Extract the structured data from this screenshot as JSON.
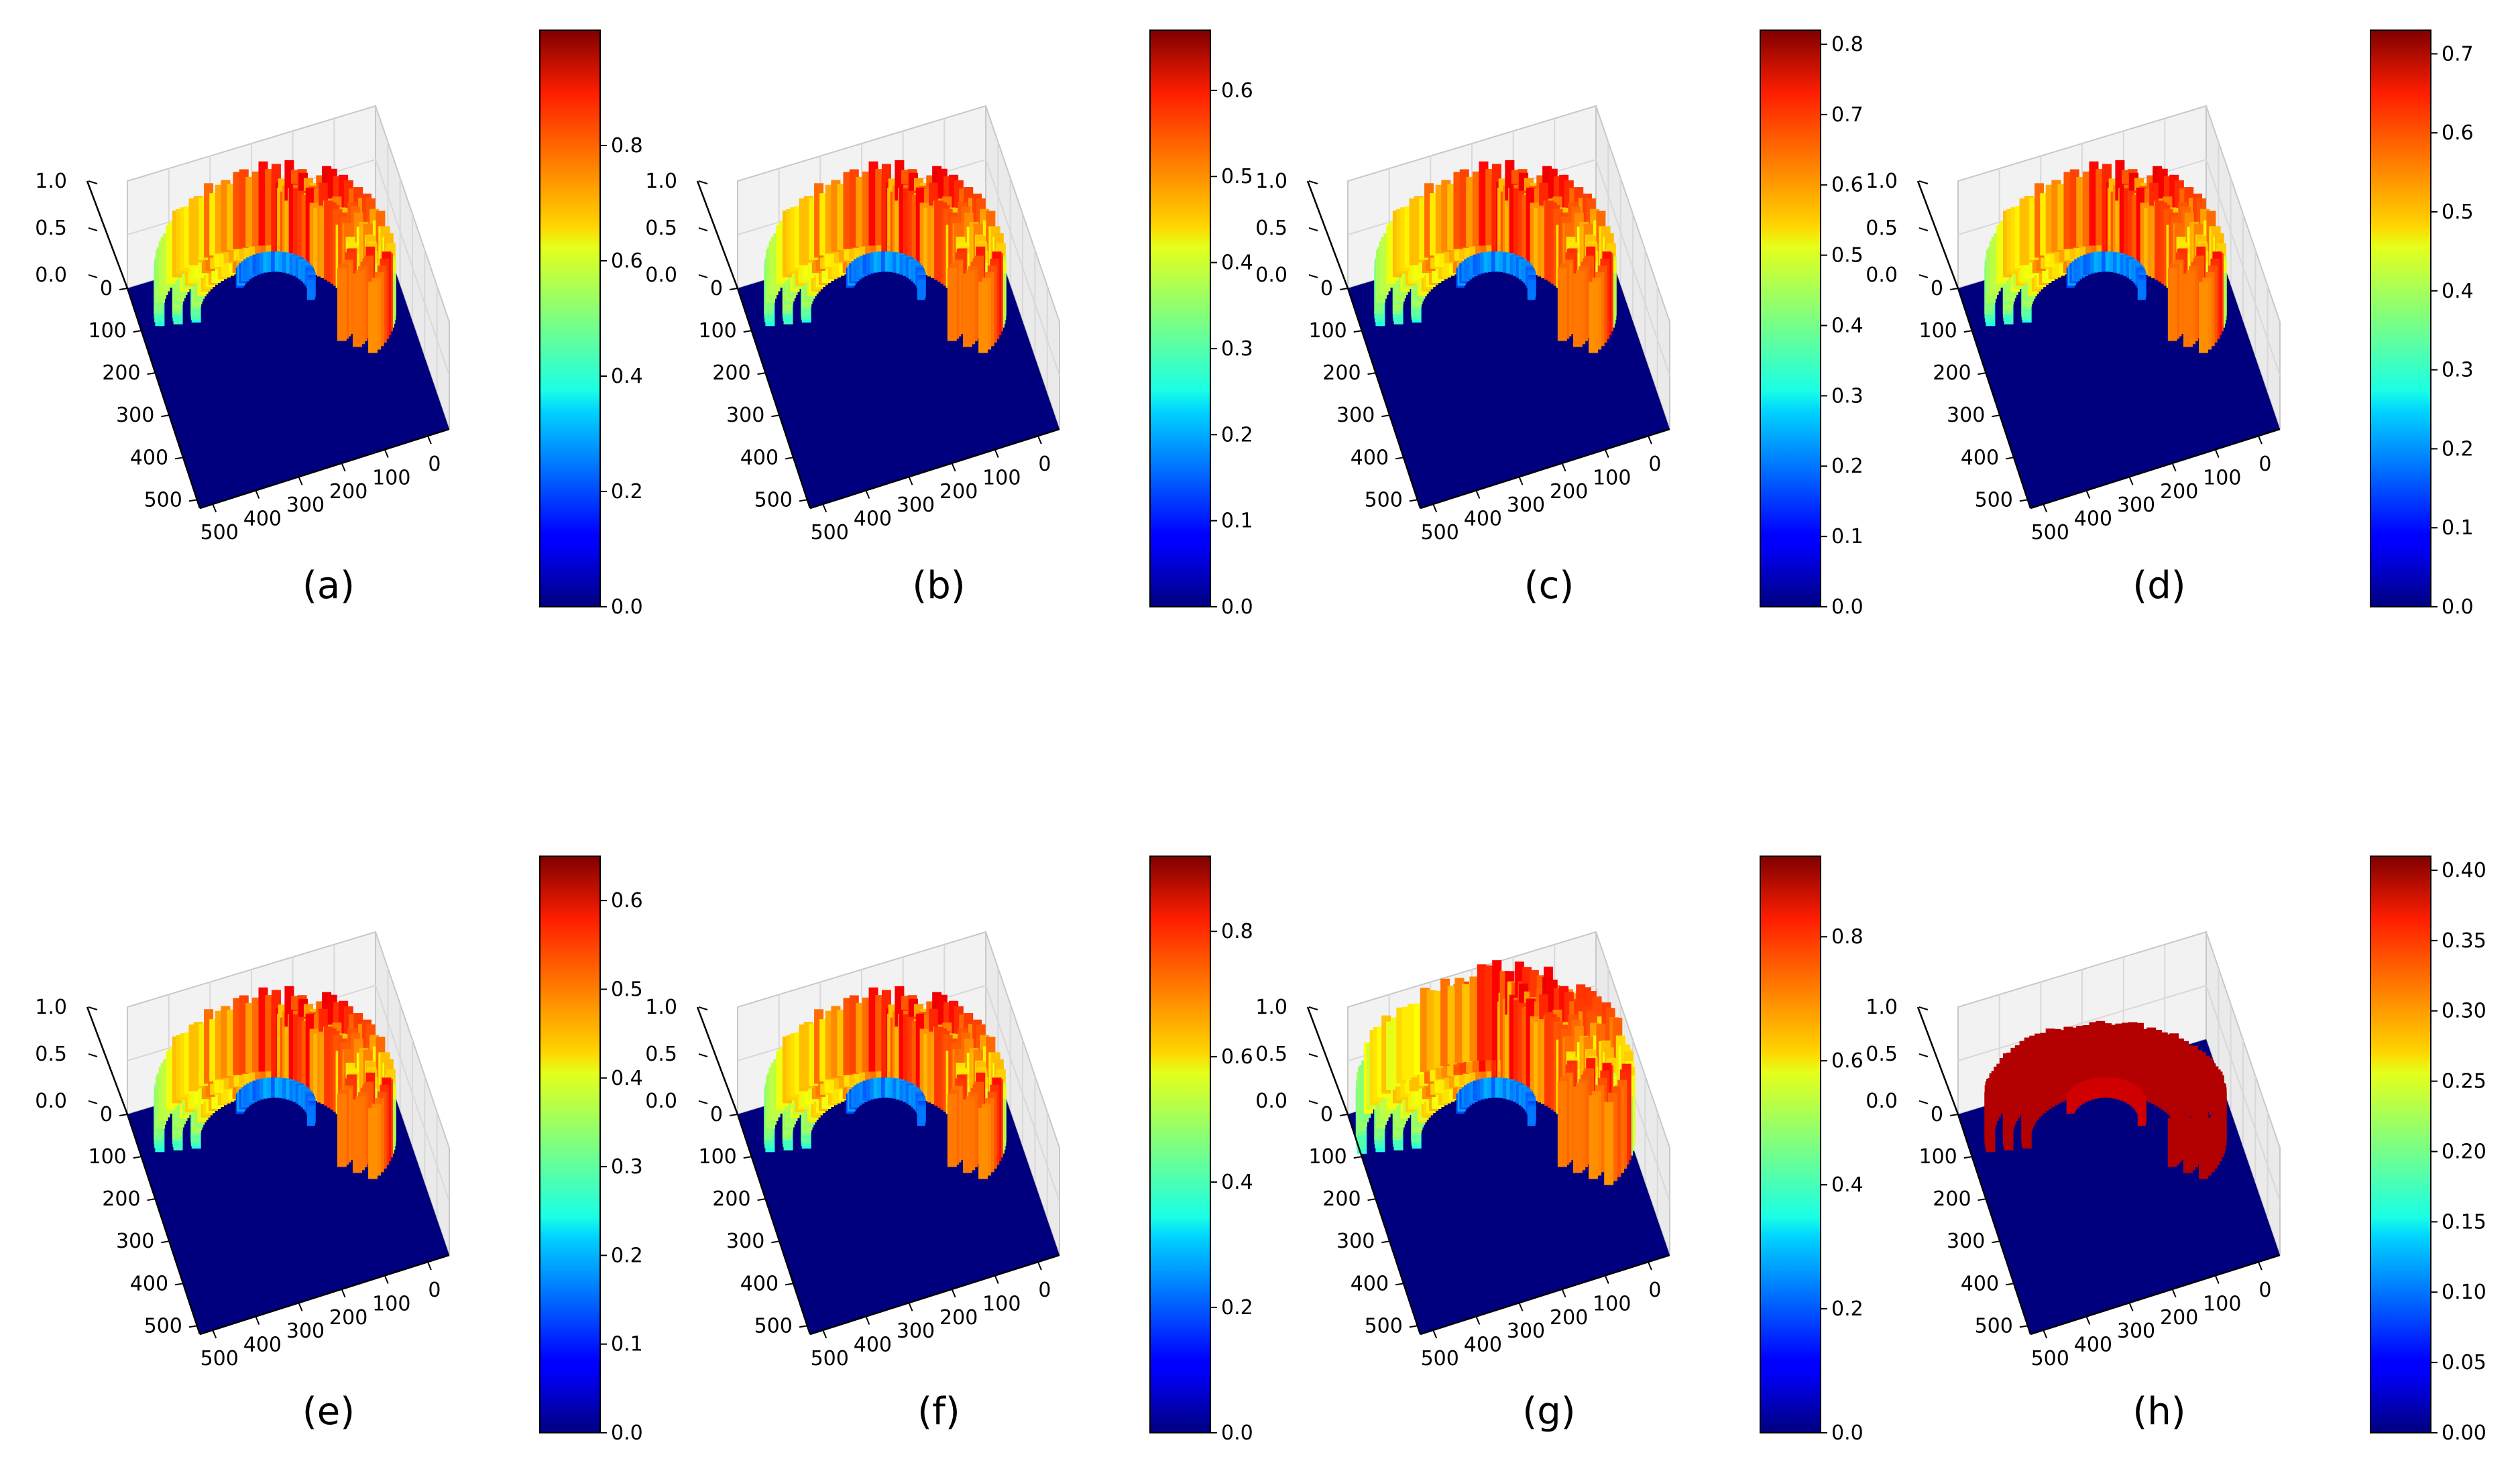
{
  "figure": {
    "background": "#ffffff"
  },
  "chart_data": [
    {
      "id": "a",
      "type": "surface3d",
      "caption": "(a)",
      "z_ticks": [
        "0.0",
        "0.5",
        "1.0"
      ],
      "x_ticks": [
        "0",
        "100",
        "200",
        "300",
        "400",
        "500"
      ],
      "y_ticks": [
        "0",
        "100",
        "200",
        "300",
        "400",
        "500"
      ],
      "zlim": [
        0,
        1
      ],
      "colorbar": {
        "ticks": [
          "0.0",
          "0.2",
          "0.4",
          "0.6",
          "0.8"
        ],
        "tick_values": [
          0,
          0.2,
          0.4,
          0.6,
          0.8
        ],
        "max": 1.0,
        "colormap": "jet"
      },
      "surface": "horseshoe",
      "peak": 1.0
    },
    {
      "id": "b",
      "type": "surface3d",
      "caption": "(b)",
      "z_ticks": [
        "0.0",
        "0.5",
        "1.0"
      ],
      "x_ticks": [
        "0",
        "100",
        "200",
        "300",
        "400",
        "500"
      ],
      "y_ticks": [
        "0",
        "100",
        "200",
        "300",
        "400",
        "500"
      ],
      "zlim": [
        0,
        1
      ],
      "colorbar": {
        "ticks": [
          "0.0",
          "0.1",
          "0.2",
          "0.3",
          "0.4",
          "0.5",
          "0.6"
        ],
        "tick_values": [
          0,
          0.1,
          0.2,
          0.3,
          0.4,
          0.5,
          0.6
        ],
        "max": 0.67,
        "colormap": "jet"
      },
      "surface": "horseshoe",
      "peak": 0.67
    },
    {
      "id": "c",
      "type": "surface3d",
      "caption": "(c)",
      "z_ticks": [
        "0.0",
        "0.5",
        "1.0"
      ],
      "x_ticks": [
        "0",
        "100",
        "200",
        "300",
        "400",
        "500"
      ],
      "y_ticks": [
        "0",
        "100",
        "200",
        "300",
        "400",
        "500"
      ],
      "zlim": [
        0,
        1
      ],
      "colorbar": {
        "ticks": [
          "0.0",
          "0.1",
          "0.2",
          "0.3",
          "0.4",
          "0.5",
          "0.6",
          "0.7",
          "0.8"
        ],
        "tick_values": [
          0,
          0.1,
          0.2,
          0.3,
          0.4,
          0.5,
          0.6,
          0.7,
          0.8
        ],
        "max": 0.82,
        "colormap": "jet"
      },
      "surface": "horseshoe",
      "peak": 0.82
    },
    {
      "id": "d",
      "type": "surface3d",
      "caption": "(d)",
      "z_ticks": [
        "0.0",
        "0.5",
        "1.0"
      ],
      "x_ticks": [
        "0",
        "100",
        "200",
        "300",
        "400",
        "500"
      ],
      "y_ticks": [
        "0",
        "100",
        "200",
        "300",
        "400",
        "500"
      ],
      "zlim": [
        0,
        1
      ],
      "colorbar": {
        "ticks": [
          "0.0",
          "0.1",
          "0.2",
          "0.3",
          "0.4",
          "0.5",
          "0.6",
          "0.7"
        ],
        "tick_values": [
          0,
          0.1,
          0.2,
          0.3,
          0.4,
          0.5,
          0.6,
          0.7
        ],
        "max": 0.73,
        "colormap": "jet"
      },
      "surface": "horseshoe",
      "peak": 0.73
    },
    {
      "id": "e",
      "type": "surface3d",
      "caption": "(e)",
      "z_ticks": [
        "0.0",
        "0.5",
        "1.0"
      ],
      "x_ticks": [
        "0",
        "100",
        "200",
        "300",
        "400",
        "500"
      ],
      "y_ticks": [
        "0",
        "100",
        "200",
        "300",
        "400",
        "500"
      ],
      "zlim": [
        0,
        1
      ],
      "colorbar": {
        "ticks": [
          "0.0",
          "0.1",
          "0.2",
          "0.3",
          "0.4",
          "0.5",
          "0.6"
        ],
        "tick_values": [
          0,
          0.1,
          0.2,
          0.3,
          0.4,
          0.5,
          0.6
        ],
        "max": 0.65,
        "colormap": "jet"
      },
      "surface": "horseshoe",
      "peak": 0.65
    },
    {
      "id": "f",
      "type": "surface3d",
      "caption": "(f)",
      "z_ticks": [
        "0.0",
        "0.5",
        "1.0"
      ],
      "x_ticks": [
        "0",
        "100",
        "200",
        "300",
        "400",
        "500"
      ],
      "y_ticks": [
        "0",
        "100",
        "200",
        "300",
        "400",
        "500"
      ],
      "zlim": [
        0,
        1
      ],
      "colorbar": {
        "ticks": [
          "0.0",
          "0.2",
          "0.4",
          "0.6",
          "0.8"
        ],
        "tick_values": [
          0,
          0.2,
          0.4,
          0.6,
          0.8
        ],
        "max": 0.92,
        "colormap": "jet"
      },
      "surface": "horseshoe",
      "peak": 0.92
    },
    {
      "id": "g",
      "type": "surface3d",
      "caption": "(g)",
      "z_ticks": [
        "0.0",
        "0.5",
        "1.0"
      ],
      "x_ticks": [
        "0",
        "100",
        "200",
        "300",
        "400",
        "500"
      ],
      "y_ticks": [
        "0",
        "100",
        "200",
        "300",
        "400",
        "500"
      ],
      "zlim": [
        0,
        1
      ],
      "colorbar": {
        "ticks": [
          "0.0",
          "0.2",
          "0.4",
          "0.6",
          "0.8"
        ],
        "tick_values": [
          0,
          0.2,
          0.4,
          0.6,
          0.8
        ],
        "max": 0.93,
        "colormap": "jet"
      },
      "surface": "thick_horseshoe",
      "peak": 0.93
    },
    {
      "id": "h",
      "type": "surface3d",
      "caption": "(h)",
      "z_ticks": [
        "0.0",
        "0.5",
        "1.0"
      ],
      "x_ticks": [
        "0",
        "100",
        "200",
        "300",
        "400",
        "500"
      ],
      "y_ticks": [
        "0",
        "100",
        "200",
        "300",
        "400",
        "500"
      ],
      "zlim": [
        0,
        1
      ],
      "colorbar": {
        "ticks": [
          "0.00",
          "0.05",
          "0.10",
          "0.15",
          "0.20",
          "0.25",
          "0.30",
          "0.35",
          "0.40"
        ],
        "tick_values": [
          0,
          0.05,
          0.1,
          0.15,
          0.2,
          0.25,
          0.3,
          0.35,
          0.4
        ],
        "max": 0.41,
        "colormap": "jet"
      },
      "surface": "flat_horseshoe",
      "peak": 0.41
    }
  ]
}
